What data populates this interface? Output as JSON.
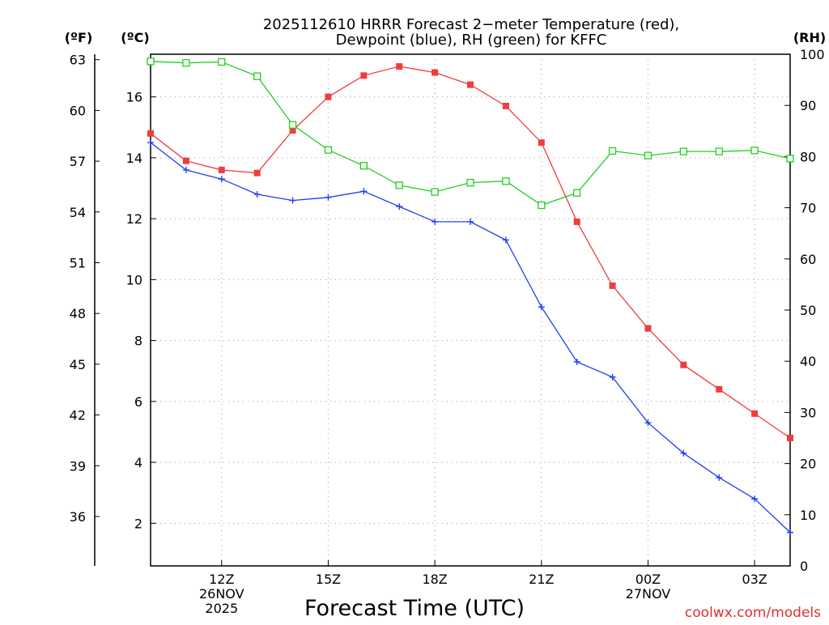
{
  "chart_data": {
    "type": "line",
    "title": "2025112610 HRRR Forecast 2-meter Temperature (red), Dewpoint (blue), RH (green) for KFFC",
    "title_lines": [
      "2025112610 HRRR Forecast 2−meter Temperature (red),",
      "Dewpoint (blue), RH (green) for KFFC"
    ],
    "xlabel": "Forecast Time (UTC)",
    "unit_labels": {
      "fahrenheit": "(ºF)",
      "celsius": "(ºC)",
      "rh": "(RH)"
    },
    "credit": "coolwx.com/models",
    "x": [
      10,
      11,
      12,
      13,
      14,
      15,
      16,
      17,
      18,
      19,
      20,
      21,
      22,
      23,
      24,
      25,
      26,
      27,
      28
    ],
    "xlim": [
      10,
      28
    ],
    "x_ticks": [
      {
        "x": 12,
        "lines": [
          "12Z",
          "26NOV",
          "2025"
        ]
      },
      {
        "x": 15,
        "lines": [
          "15Z"
        ]
      },
      {
        "x": 18,
        "lines": [
          "18Z"
        ]
      },
      {
        "x": 21,
        "lines": [
          "21Z"
        ]
      },
      {
        "x": 24,
        "lines": [
          "00Z",
          "27NOV"
        ]
      },
      {
        "x": 27,
        "lines": [
          "03Z"
        ]
      }
    ],
    "ylim_celsius": [
      0.6,
      17.4
    ],
    "celsius_ticks": [
      2,
      4,
      6,
      8,
      10,
      12,
      14,
      16
    ],
    "fahrenheit_ticks": [
      36,
      39,
      42,
      45,
      48,
      51,
      54,
      57,
      60,
      63
    ],
    "ylim_rh": [
      0,
      100
    ],
    "rh_ticks": [
      0,
      10,
      20,
      30,
      40,
      50,
      60,
      70,
      80,
      90,
      100
    ],
    "series": [
      {
        "name": "Temperature",
        "axis": "celsius",
        "color": "#f03c3c",
        "marker": "filled-square",
        "values": [
          14.8,
          13.9,
          13.6,
          13.5,
          14.9,
          16.0,
          16.7,
          17.0,
          16.8,
          16.4,
          15.7,
          14.5,
          11.9,
          9.8,
          8.4,
          7.2,
          6.4,
          5.6,
          4.8
        ]
      },
      {
        "name": "Dewpoint",
        "axis": "celsius",
        "color": "#2040f0",
        "marker": "plus",
        "values": [
          14.5,
          13.6,
          13.3,
          12.8,
          12.6,
          12.7,
          12.9,
          12.4,
          11.9,
          11.9,
          11.3,
          9.1,
          7.3,
          6.8,
          5.3,
          4.3,
          3.5,
          2.8,
          1.7
        ]
      },
      {
        "name": "RH",
        "axis": "rh",
        "color": "#20d020",
        "marker": "open-square",
        "values": [
          98.6,
          98.3,
          98.5,
          95.7,
          86.2,
          81.3,
          78.2,
          74.4,
          73.1,
          74.9,
          75.2,
          70.5,
          72.9,
          81.1,
          80.2,
          81.0,
          81.0,
          81.2,
          79.6
        ]
      }
    ]
  }
}
